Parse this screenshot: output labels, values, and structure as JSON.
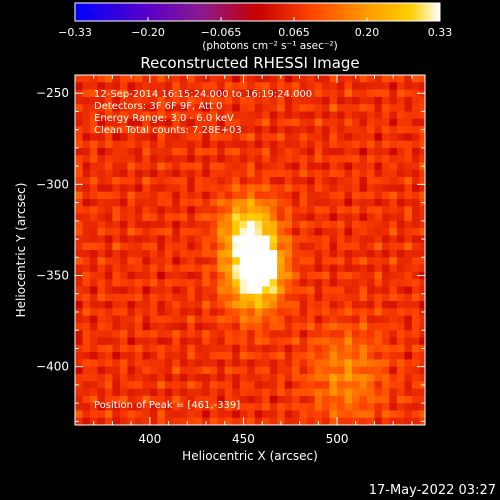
{
  "chart_data": {
    "type": "heatmap",
    "title": "Reconstructed RHESSI Image",
    "xlabel": "Heliocentric X (arcsec)",
    "ylabel": "Heliocentric Y (arcsec)",
    "xlim": [
      360,
      547
    ],
    "ylim": [
      -432,
      -240
    ],
    "x_ticks": [
      400,
      450,
      500
    ],
    "y_ticks": [
      -250,
      -300,
      -350,
      -400
    ],
    "grid": false,
    "colorbar": {
      "ticks": [
        "−0.33",
        "−0.20",
        "−0.065",
        "0.065",
        "0.20",
        "0.33"
      ],
      "unit_label": "(photons cm⁻² s⁻¹ asec⁻²)",
      "range": [
        -0.33,
        0.33
      ],
      "colormap": [
        "#0000ff",
        "#5a00c8",
        "#8c1a8c",
        "#c80000",
        "#ff4500",
        "#ff9a00",
        "#ffd000",
        "#ffffff"
      ]
    },
    "annotations": [
      "12-Sep-2014 16:15:24.000 to 16:19:24.000",
      "Detectors: 3F 6F 9F, Att 0",
      "Energy Range: 3.0 - 6.0 keV",
      "Clean    Total counts: 7.28E+03"
    ],
    "peak_label": "Position of Peak = [461,-339]",
    "peak": {
      "x": 461,
      "y": -339,
      "value": 0.33
    },
    "sources": [
      {
        "x": 455,
        "y": -342,
        "sx": 10,
        "sy": 18,
        "amp": 0.33
      },
      {
        "x": 462,
        "y": -348,
        "sx": 7,
        "sy": 10,
        "amp": 0.1
      },
      {
        "x": 450,
        "y": -320,
        "sx": 10,
        "sy": 10,
        "amp": 0.08
      },
      {
        "x": 505,
        "y": -405,
        "sx": 14,
        "sy": 18,
        "amp": 0.1
      }
    ]
  },
  "timestamp": "17-May-2022 03:27"
}
